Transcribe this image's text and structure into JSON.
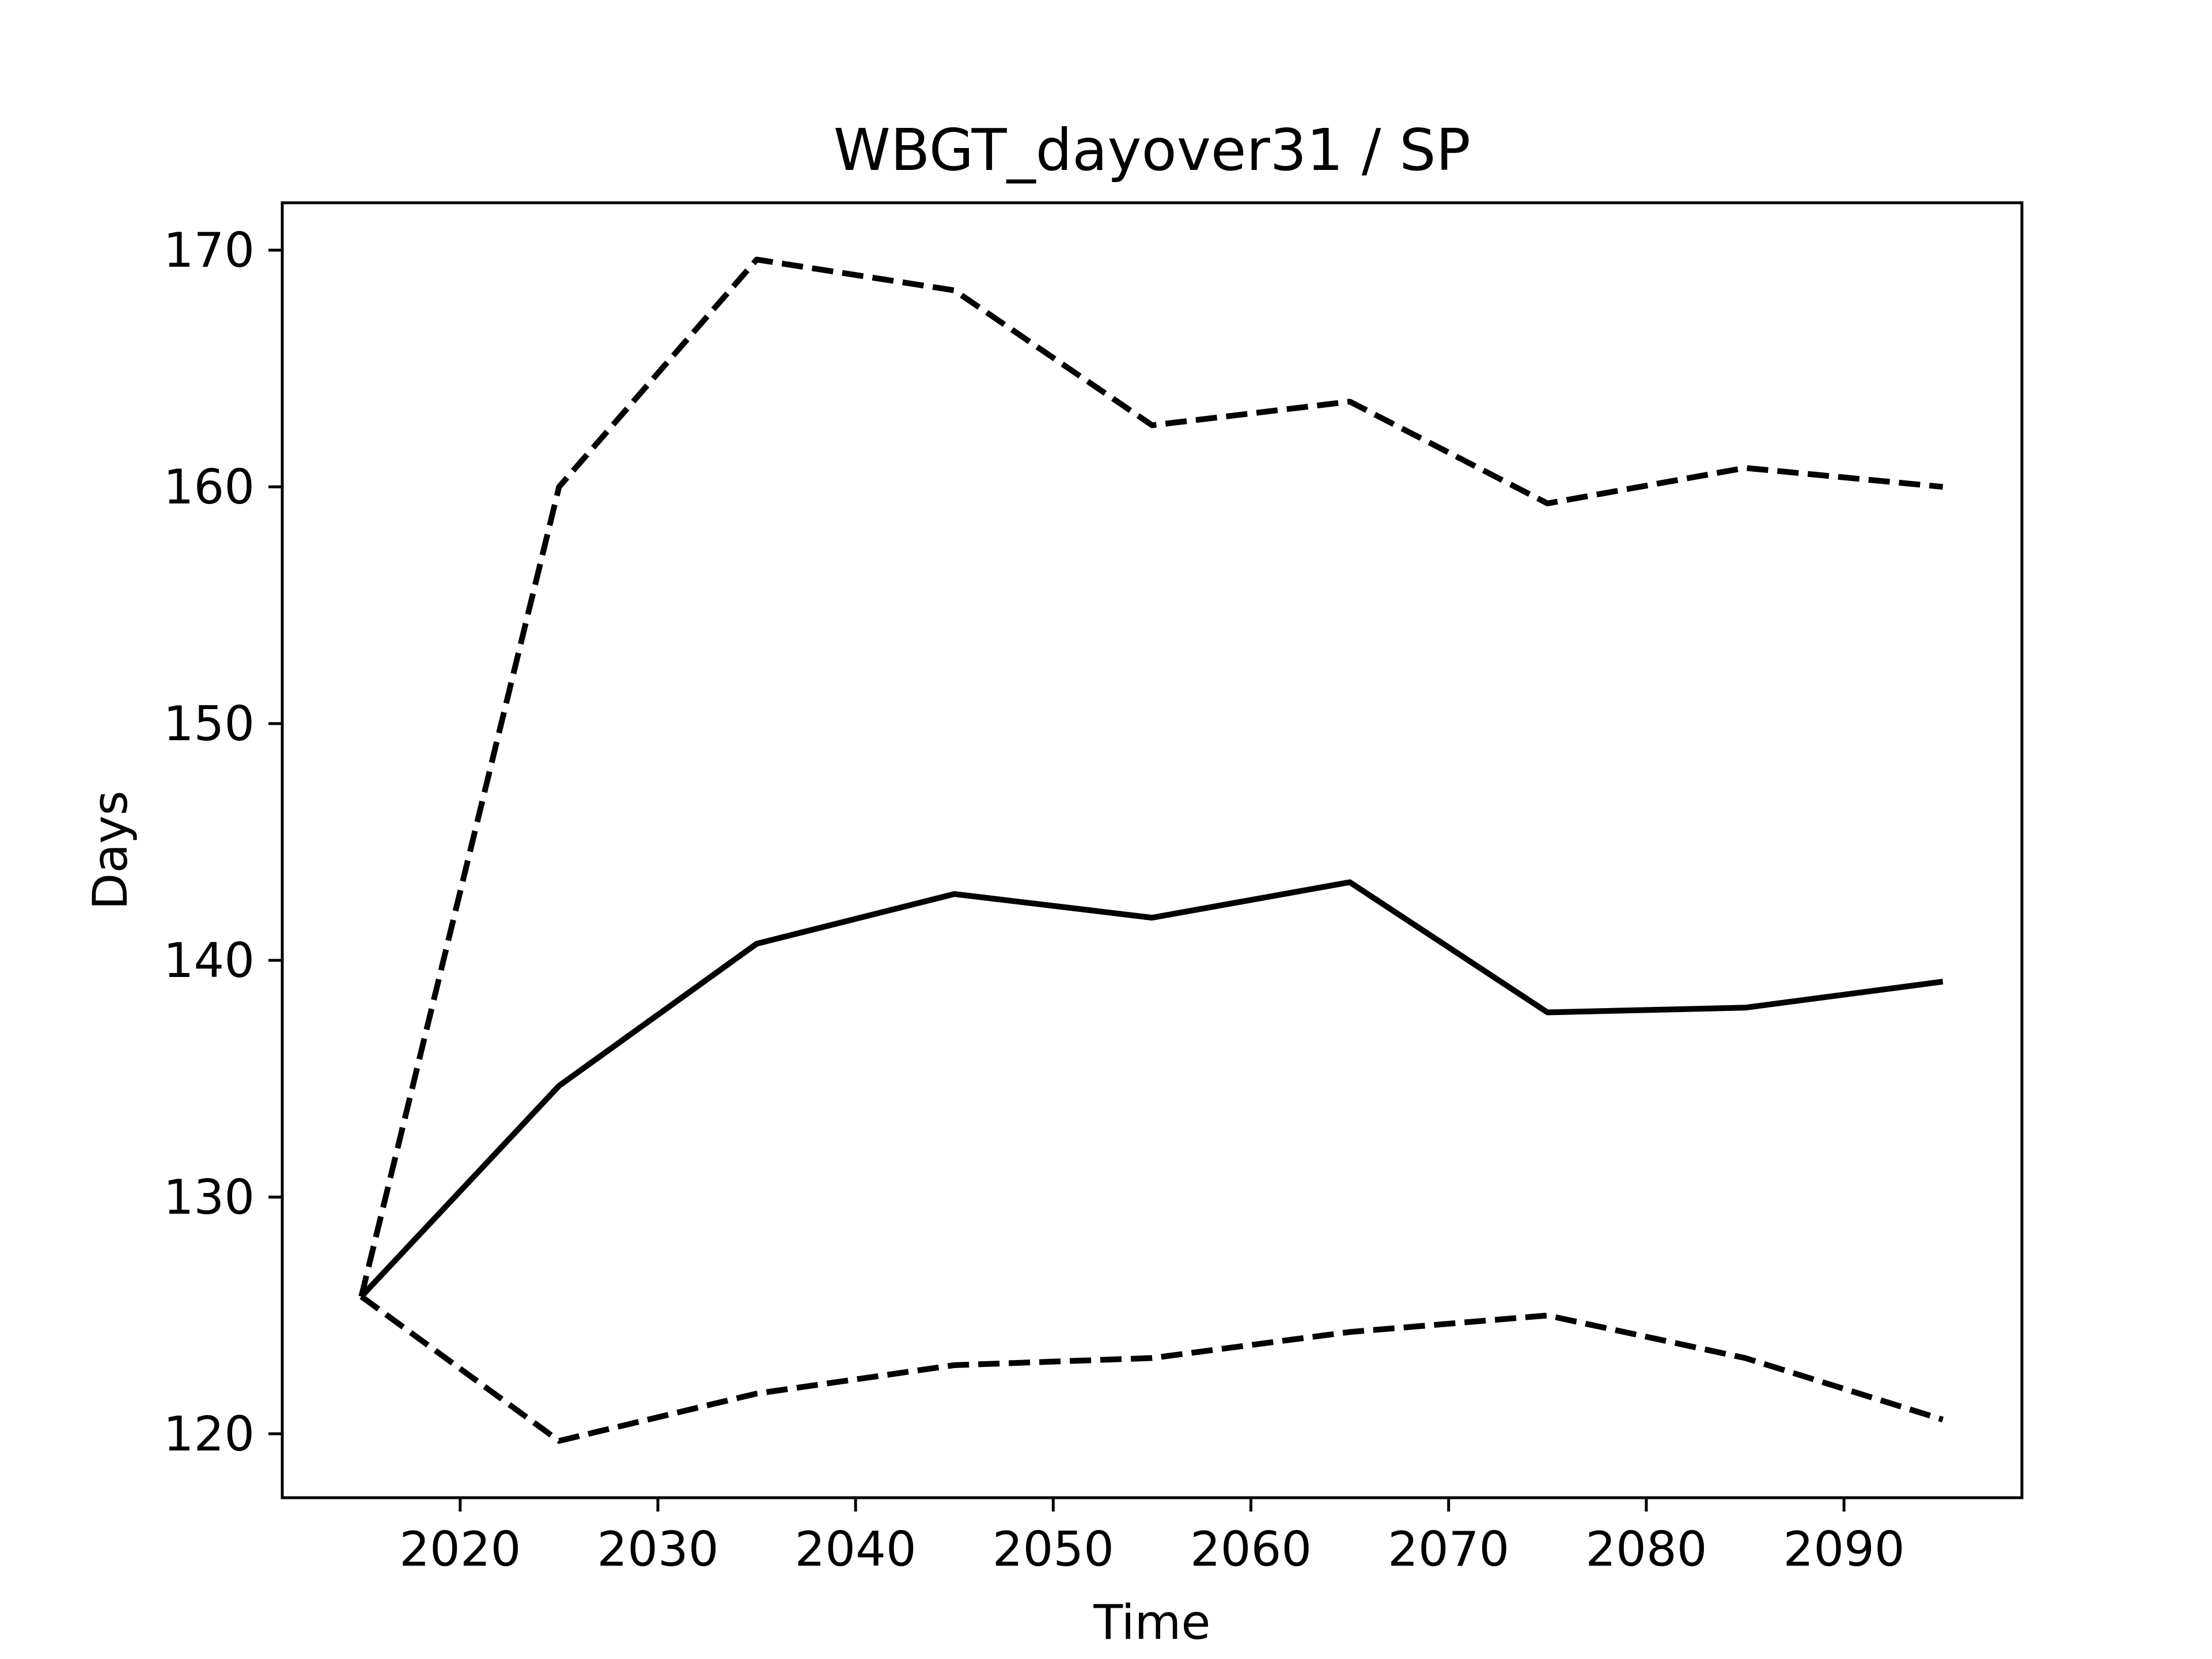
{
  "chart_data": {
    "type": "line",
    "title": "WBGT_dayover31 / SP",
    "xlabel": "Time",
    "ylabel": "Days",
    "x": [
      2015,
      2025,
      2035,
      2045,
      2055,
      2065,
      2075,
      2085,
      2095
    ],
    "xlim": [
      2011.0,
      2099.0
    ],
    "ylim": [
      117.3,
      172.0
    ],
    "xticks": [
      2020,
      2030,
      2040,
      2050,
      2060,
      2070,
      2080,
      2090
    ],
    "yticks": [
      120,
      130,
      140,
      150,
      160,
      170
    ],
    "grid": false,
    "legend": "none",
    "series": [
      {
        "style": "solid",
        "color": "#000000",
        "values": [
          125.8,
          134.7,
          140.7,
          142.8,
          141.8,
          143.3,
          137.8,
          138.0,
          139.1
        ]
      },
      {
        "style": "dashed",
        "color": "#000000",
        "values": [
          125.8,
          160.0,
          169.6,
          168.3,
          162.6,
          163.6,
          159.3,
          160.8,
          160.0
        ]
      },
      {
        "style": "dashed",
        "color": "#000000",
        "values": [
          125.8,
          119.7,
          121.7,
          122.9,
          123.2,
          124.3,
          125.0,
          123.2,
          120.6
        ]
      }
    ]
  }
}
